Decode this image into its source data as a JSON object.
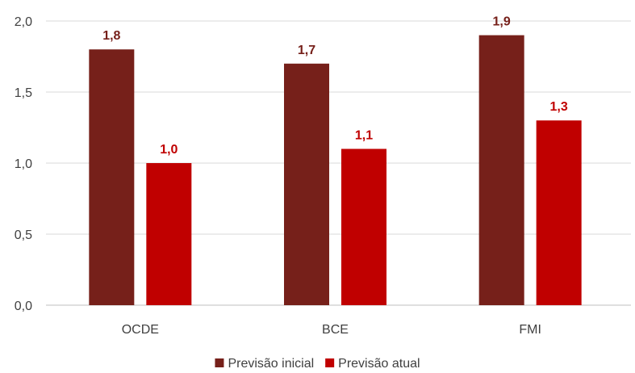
{
  "chart_data": {
    "type": "bar",
    "categories": [
      "OCDE",
      "BCE",
      "FMI"
    ],
    "series": [
      {
        "name": "Previsão inicial",
        "values": [
          1.8,
          1.7,
          1.9
        ],
        "labels": [
          "1,8",
          "1,7",
          "1,9"
        ],
        "color": "#76201A"
      },
      {
        "name": "Previsão atual",
        "values": [
          1.0,
          1.1,
          1.3
        ],
        "labels": [
          "1,0",
          "1,1",
          "1,3"
        ],
        "color": "#C00000"
      }
    ],
    "ylim": [
      0,
      2.0
    ],
    "yticks": [
      0,
      0.5,
      1.0,
      1.5,
      2.0
    ],
    "ytick_labels": [
      "0,0",
      "0,5",
      "1,0",
      "1,5",
      "2,0"
    ],
    "grid": true,
    "legend_position": "bottom"
  }
}
